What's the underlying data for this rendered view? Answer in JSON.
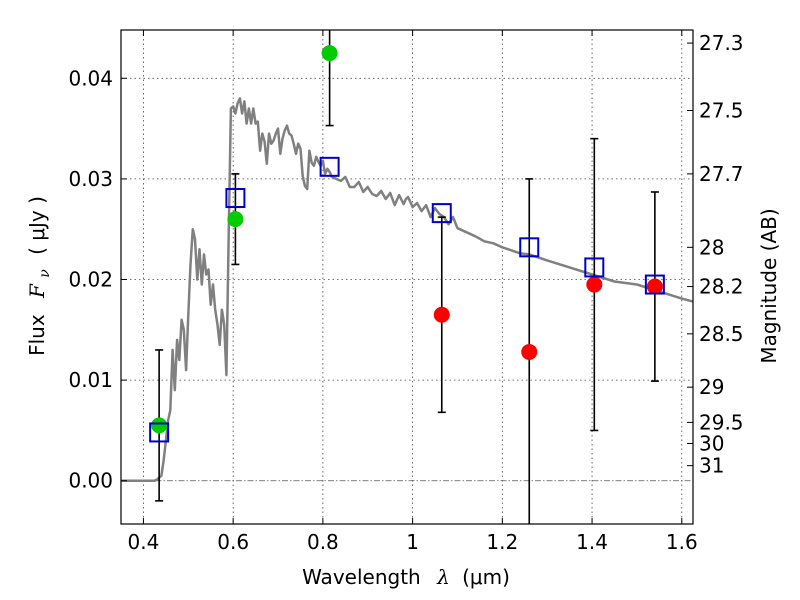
{
  "chart_data": {
    "type": "scatter",
    "xlabel": "Wavelength",
    "xlabel_symbol": "λ",
    "xlabel_unit": "(μm)",
    "ylabel": "Flux",
    "ylabel_symbol": "F",
    "ylabel_subscript": "ν",
    "ylabel_unit": "( μJy )",
    "y2label": "Magnitude (AB)",
    "xlim": [
      0.35,
      1.625
    ],
    "ylim": [
      -0.0043,
      0.0448
    ],
    "grid": true,
    "xticks": [
      0.4,
      0.6,
      0.8,
      1.0,
      1.2,
      1.4,
      1.6
    ],
    "xtick_labels": [
      "0.4",
      "0.6",
      "0.8",
      "1",
      "1.2",
      "1.4",
      "1.6"
    ],
    "yticks": [
      0.0,
      0.01,
      0.02,
      0.03,
      0.04
    ],
    "ytick_labels": [
      "0.00",
      "0.01",
      "0.02",
      "0.03",
      "0.04"
    ],
    "y2ticks": [
      {
        "label": "27.3",
        "flux": 0.0435
      },
      {
        "label": "27.5",
        "flux": 0.0368
      },
      {
        "label": "27.7",
        "flux": 0.0305
      },
      {
        "label": "28",
        "flux": 0.0232
      },
      {
        "label": "28.2",
        "flux": 0.0193
      },
      {
        "label": "28.5",
        "flux": 0.0146
      },
      {
        "label": "29",
        "flux": 0.0093
      },
      {
        "label": "29.5",
        "flux": 0.0058
      },
      {
        "label": "30",
        "flux": 0.0037
      },
      {
        "label": "31",
        "flux": 0.0015
      }
    ],
    "model_sed": {
      "color": "#808080",
      "x": [
        0.35,
        0.425,
        0.43,
        0.435,
        0.44,
        0.445,
        0.45,
        0.455,
        0.46,
        0.465,
        0.47,
        0.475,
        0.48,
        0.485,
        0.49,
        0.495,
        0.5,
        0.505,
        0.51,
        0.515,
        0.52,
        0.525,
        0.53,
        0.535,
        0.54,
        0.545,
        0.55,
        0.555,
        0.56,
        0.565,
        0.57,
        0.575,
        0.58,
        0.585,
        0.59,
        0.595,
        0.6,
        0.605,
        0.61,
        0.615,
        0.62,
        0.625,
        0.63,
        0.635,
        0.64,
        0.645,
        0.65,
        0.655,
        0.66,
        0.665,
        0.67,
        0.675,
        0.68,
        0.685,
        0.69,
        0.695,
        0.7,
        0.705,
        0.71,
        0.715,
        0.72,
        0.725,
        0.73,
        0.735,
        0.74,
        0.745,
        0.75,
        0.755,
        0.76,
        0.765,
        0.77,
        0.775,
        0.78,
        0.785,
        0.79,
        0.795,
        0.8,
        0.805,
        0.81,
        0.815,
        0.82,
        0.83,
        0.84,
        0.85,
        0.86,
        0.87,
        0.88,
        0.89,
        0.9,
        0.91,
        0.92,
        0.93,
        0.94,
        0.95,
        0.96,
        0.97,
        0.98,
        0.985,
        0.99,
        1.0,
        1.01,
        1.02,
        1.03,
        1.04,
        1.05,
        1.06,
        1.07,
        1.08,
        1.09,
        1.1,
        1.12,
        1.14,
        1.16,
        1.18,
        1.2,
        1.22,
        1.24,
        1.26,
        1.3,
        1.35,
        1.4,
        1.45,
        1.5,
        1.55,
        1.6,
        1.625
      ],
      "y": [
        0.0,
        0.0,
        0.0001,
        0.0003,
        0.0005,
        0.002,
        0.004,
        0.006,
        0.007,
        0.013,
        0.009,
        0.014,
        0.012,
        0.016,
        0.015,
        0.011,
        0.0165,
        0.0215,
        0.025,
        0.024,
        0.02,
        0.023,
        0.0195,
        0.0225,
        0.0205,
        0.021,
        0.0175,
        0.0195,
        0.017,
        0.0155,
        0.0135,
        0.017,
        0.0155,
        0.0105,
        0.0245,
        0.037,
        0.0372,
        0.0365,
        0.0375,
        0.038,
        0.0365,
        0.0377,
        0.0355,
        0.037,
        0.0355,
        0.037,
        0.0355,
        0.0357,
        0.0328,
        0.0345,
        0.0337,
        0.0315,
        0.0345,
        0.0335,
        0.0338,
        0.0345,
        0.035,
        0.0325,
        0.034,
        0.0348,
        0.0353,
        0.0345,
        0.0343,
        0.0335,
        0.0325,
        0.0335,
        0.033,
        0.0303,
        0.0293,
        0.029,
        0.0328,
        0.0316,
        0.0313,
        0.0322,
        0.0317,
        0.0313,
        0.0318,
        0.0305,
        0.031,
        0.0307,
        0.0302,
        0.03,
        0.0298,
        0.0302,
        0.0292,
        0.0292,
        0.0297,
        0.0287,
        0.0292,
        0.0285,
        0.0283,
        0.0288,
        0.028,
        0.0286,
        0.0274,
        0.0284,
        0.0275,
        0.028,
        0.0282,
        0.0272,
        0.0276,
        0.0268,
        0.0274,
        0.0262,
        0.0271,
        0.0265,
        0.0262,
        0.0255,
        0.0262,
        0.0251,
        0.0247,
        0.0243,
        0.0238,
        0.0236,
        0.0232,
        0.0229,
        0.0226,
        0.0225,
        0.0219,
        0.0212,
        0.0205,
        0.0198,
        0.0195,
        0.0188,
        0.0181,
        0.0178
      ]
    },
    "series": [
      {
        "color": "#00cc00",
        "points": [
          {
            "x": 0.435,
            "y": 0.0055,
            "err": 0.0075
          },
          {
            "x": 0.605,
            "y": 0.026,
            "err": 0.0045
          },
          {
            "x": 0.815,
            "y": 0.0425,
            "err": 0.0072
          }
        ]
      },
      {
        "color": "#ff0000",
        "points": [
          {
            "x": 1.065,
            "y": 0.0165,
            "err": 0.0097
          },
          {
            "x": 1.26,
            "y": 0.0128,
            "err": 0.0172
          },
          {
            "x": 1.405,
            "y": 0.0195,
            "err": 0.0145
          },
          {
            "x": 1.54,
            "y": 0.0193,
            "err": 0.0094
          }
        ]
      },
      {
        "color": "#0000cc",
        "marker": "square-open",
        "points": [
          {
            "x": 0.435,
            "y": 0.0048
          },
          {
            "x": 0.605,
            "y": 0.0281
          },
          {
            "x": 0.815,
            "y": 0.0312
          },
          {
            "x": 1.065,
            "y": 0.0266
          },
          {
            "x": 1.26,
            "y": 0.0232
          },
          {
            "x": 1.405,
            "y": 0.0212
          },
          {
            "x": 1.54,
            "y": 0.0195
          }
        ]
      }
    ]
  }
}
